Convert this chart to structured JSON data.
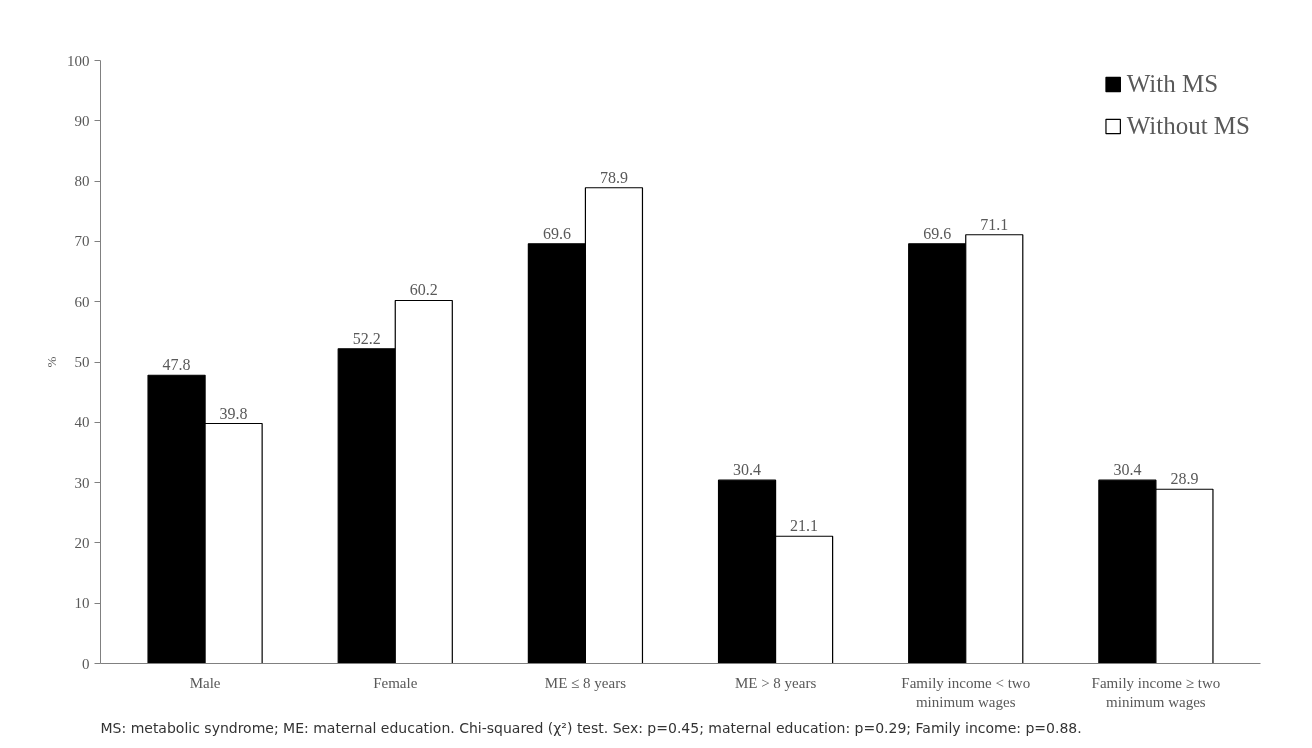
{
  "chart_data": {
    "type": "bar",
    "ylabel": "%",
    "categories": [
      "Male",
      "Female",
      "ME ≤ 8 years",
      "ME > 8 years",
      "Family income < two minimum wages",
      "Family income ≥ two minimum wages"
    ],
    "series": [
      {
        "name": "With MS",
        "color": "#000000",
        "values": [
          47.8,
          52.2,
          69.6,
          30.4,
          69.6,
          30.4
        ]
      },
      {
        "name": "Without MS",
        "color": "#ffffff",
        "values": [
          39.8,
          60.2,
          78.9,
          21.1,
          71.1,
          28.9
        ]
      }
    ],
    "ylim": [
      0,
      100
    ],
    "yticks": [
      0,
      10,
      20,
      30,
      40,
      50,
      60,
      70,
      80,
      90,
      100
    ],
    "data_labels": true,
    "grid": false,
    "legend": "top right",
    "annotations": [
      "MS: metabolic syndrome; ME: maternal education. Chi-squared (χ²) test. Sex: p=0.45;  maternal education: p=0.29; Family income: p=0.88."
    ]
  }
}
